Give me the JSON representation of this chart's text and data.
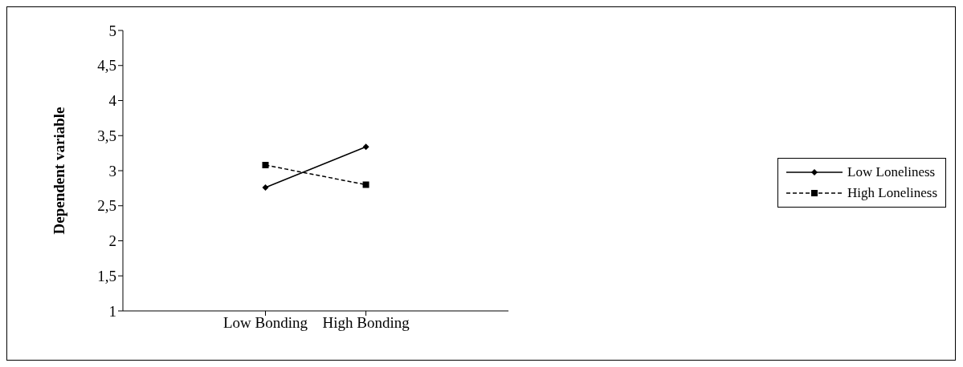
{
  "chart_data": {
    "type": "line",
    "ylabel": "Dependent variable",
    "categories": [
      "Low Bonding",
      "High Bonding"
    ],
    "series": [
      {
        "name": "Low Loneliness",
        "color": "#000000",
        "values": [
          2.76,
          3.34
        ],
        "marker": "diamond",
        "line_style": "solid"
      },
      {
        "name": "High Loneliness",
        "color": "#000000",
        "values": [
          3.08,
          2.8
        ],
        "marker": "square",
        "line_style": "dashed"
      }
    ],
    "ylim": [
      1,
      5
    ],
    "yticks": [
      1,
      {
        "value": 1.5,
        "label": "1,5"
      },
      2,
      {
        "value": 2.5,
        "label": "2,5"
      },
      3,
      {
        "value": 3.5,
        "label": "3,5"
      },
      4,
      {
        "value": 4.5,
        "label": "4,5"
      },
      5
    ],
    "grid": false,
    "legend": "right"
  }
}
